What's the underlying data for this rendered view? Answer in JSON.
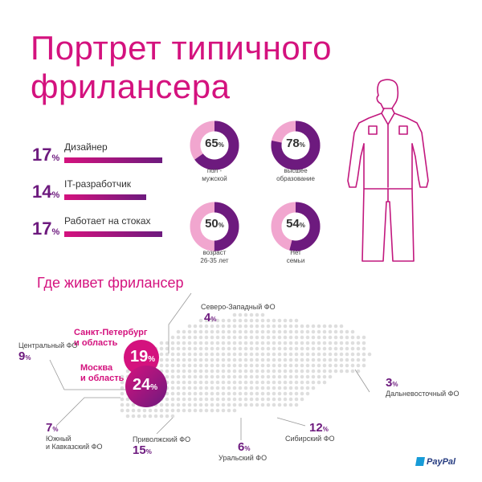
{
  "title": {
    "line1": "Портрет типичного",
    "line2": "фрилансера"
  },
  "professions": [
    {
      "pct": "17",
      "label": "Дизайнер",
      "fill": 0.95
    },
    {
      "pct": "14",
      "label": "IT-разработчик",
      "fill": 0.8
    },
    {
      "pct": "17",
      "label": "Работает на стоках",
      "fill": 0.95
    }
  ],
  "percent_sign": "%",
  "donuts": [
    {
      "value": 65,
      "label1": "пол -",
      "label2": "мужской"
    },
    {
      "value": 78,
      "label1": "высшее",
      "label2": "образование"
    },
    {
      "value": 50,
      "label1": "возраст",
      "label2": "26-35 лет"
    },
    {
      "value": 54,
      "label1": "Нет",
      "label2": "семьи"
    }
  ],
  "map_section": {
    "title": "Где живет фрилансер",
    "regions": {
      "northwest": {
        "name": "Северо-Западный ФО",
        "pct": "4"
      },
      "central": {
        "name": "Центральный ФО",
        "pct": "9"
      },
      "fareast": {
        "name": "Дальневосточный ФО",
        "pct": "3"
      },
      "south": {
        "name1": "Южный",
        "name2": "и Кавказский ФО",
        "pct": "7"
      },
      "volga": {
        "name": "Приволжский ФО",
        "pct": "15"
      },
      "ural": {
        "name": "Уральский ФО",
        "pct": "6"
      },
      "siberia": {
        "name": "Сибирский ФО",
        "pct": "12"
      }
    },
    "cities": {
      "spb": {
        "name1": "Санкт-Петербург",
        "name2": "и область",
        "pct": "19"
      },
      "msk": {
        "name1": "Москва",
        "name2": "и область",
        "pct": "24"
      }
    }
  },
  "brand": {
    "logo_text": "PayPal"
  },
  "colors": {
    "accent": "#d4127e",
    "purple": "#6d1a7e",
    "light_pink": "#f1a6cf",
    "map_dot": "#dedede"
  }
}
